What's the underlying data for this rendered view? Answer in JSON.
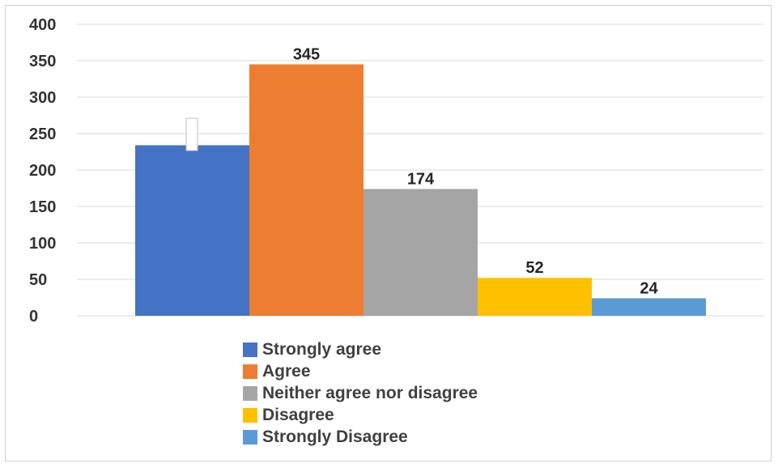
{
  "chart_data": {
    "type": "bar",
    "categories": [
      "Strongly agree",
      "Agree",
      "Neither agree nor disagree",
      "Disagree",
      "Strongly Disagree"
    ],
    "values": [
      234,
      345,
      174,
      52,
      24
    ],
    "data_labels": [
      "",
      "345",
      "174",
      "52",
      "24"
    ],
    "colors": [
      "#4472c4",
      "#ed7d31",
      "#a5a5a5",
      "#ffc000",
      "#5b9bd5"
    ],
    "ylim": [
      0,
      400
    ],
    "yticks": [
      0,
      50,
      100,
      150,
      200,
      250,
      300,
      350,
      400
    ],
    "title": "",
    "xlabel": "",
    "ylabel": "",
    "grid": true,
    "legend_position": "bottom"
  }
}
